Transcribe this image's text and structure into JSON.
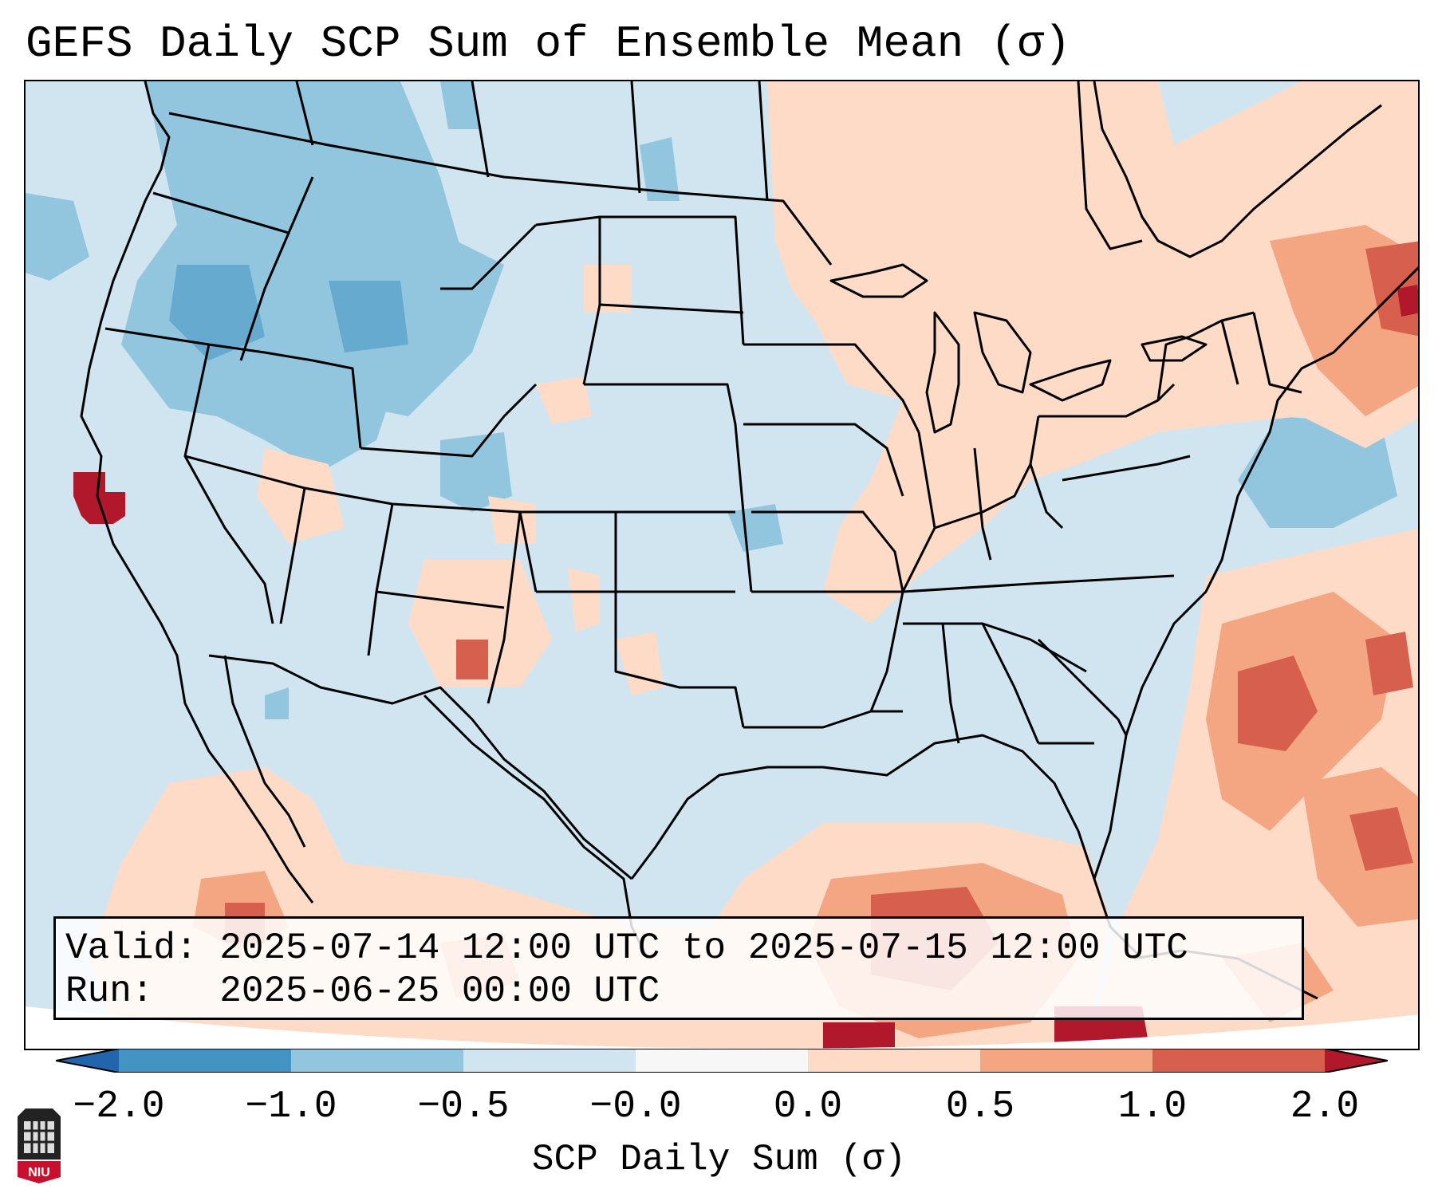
{
  "title": "GEFS Daily SCP Sum of Ensemble Mean (σ)",
  "map": {
    "region": "CONUS",
    "features": [
      "us-state-borders",
      "coastlines",
      "canada-province-borders",
      "mexico-border"
    ]
  },
  "info": {
    "valid_label": "Valid:",
    "valid_value": "2025-07-14 12:00 UTC to 2025-07-15 12:00 UTC",
    "run_label": "Run:",
    "run_value": "2025-06-25 00:00 UTC"
  },
  "colorbar": {
    "label": "SCP Daily Sum (σ)",
    "ticks": [
      "−2.0",
      "−1.0",
      "−0.5",
      "−0.0",
      "0.0",
      "0.5",
      "1.0",
      "2.0"
    ],
    "colors": [
      "#2166ac",
      "#4393c3",
      "#92c5de",
      "#d1e5f0",
      "#f7f7f7",
      "#fddbc7",
      "#f4a582",
      "#d6604d",
      "#b2182b"
    ]
  },
  "logo": {
    "text": "NIU"
  }
}
